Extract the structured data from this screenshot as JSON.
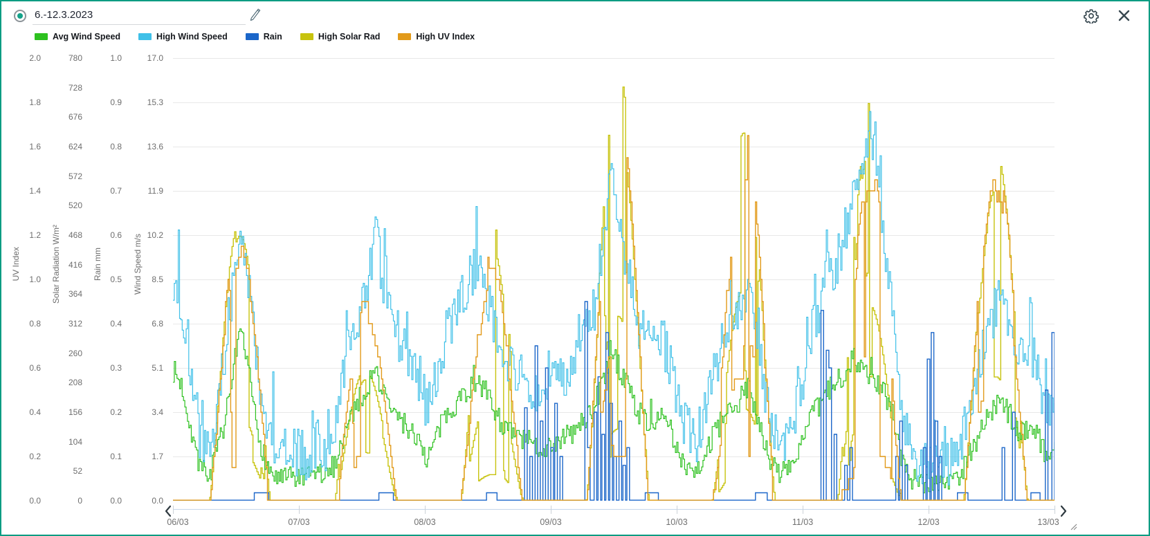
{
  "header": {
    "date_range": "6.-12.3.2023"
  },
  "icons": {
    "edit": "pencil-icon",
    "settings": "gear-icon",
    "close": "close-icon",
    "prev": "chevron-left-icon",
    "next": "chevron-right-icon"
  },
  "colors": {
    "border": "#0b9c82",
    "radio_fill": "#14a38a",
    "grid": "#e8e8e8",
    "tick_text": "#6e6e6e",
    "icon": "#37474f"
  },
  "chart_data": {
    "type": "line",
    "subtype": "step",
    "title": "",
    "grid": "horizontal",
    "legend_position": "top",
    "step_minutes": 15,
    "hours_total": 168,
    "seed": 7,
    "x_labels": [
      "06/03",
      "07/03",
      "08/03",
      "09/03",
      "10/03",
      "11/03",
      "12/03",
      "13/03"
    ],
    "axes": [
      {
        "id": "uv",
        "title": "UV Index",
        "min": 0,
        "max": 2.0,
        "ticks": [
          "2.0",
          "1.8",
          "1.6",
          "1.4",
          "1.2",
          "1.0",
          "0.8",
          "0.6",
          "0.4",
          "0.2",
          "0.0"
        ]
      },
      {
        "id": "solar",
        "title": "Solar Radiation W/m²",
        "min": 0,
        "max": 780,
        "ticks": [
          "780",
          "728",
          "676",
          "624",
          "572",
          "520",
          "468",
          "416",
          "364",
          "312",
          "260",
          "208",
          "156",
          "104",
          "52",
          "0"
        ]
      },
      {
        "id": "rain",
        "title": "Rain mm",
        "min": 0,
        "max": 1.0,
        "ticks": [
          "1.0",
          "0.9",
          "0.8",
          "0.7",
          "0.6",
          "0.5",
          "0.4",
          "0.3",
          "0.2",
          "0.1",
          "0.0"
        ]
      },
      {
        "id": "wind",
        "title": "Wind Speed m/s",
        "min": 0,
        "max": 17.0,
        "ticks": [
          "17.0",
          "15.3",
          "13.6",
          "11.9",
          "10.2",
          "8.5",
          "6.8",
          "5.1",
          "3.4",
          "1.7",
          "0.0"
        ]
      }
    ],
    "series": [
      {
        "name": "Avg Wind Speed",
        "color": "#2dc11f",
        "axis": "wind",
        "kind": "keypoints",
        "noise": 0.45,
        "spike_p": 0.03,
        "spike_amp": 0.8,
        "vmax": 6.9,
        "vmin": 0.1,
        "keypoints": [
          [
            0,
            5.0
          ],
          [
            1.6,
            4.4
          ],
          [
            2.9,
            3.2
          ],
          [
            4.9,
            1.3
          ],
          [
            6.9,
            1.0
          ],
          [
            8.8,
            2.2
          ],
          [
            10.8,
            4.0
          ],
          [
            12.8,
            6.4
          ],
          [
            14.1,
            5.2
          ],
          [
            16.1,
            2.6
          ],
          [
            18.1,
            1.2
          ],
          [
            20,
            0.8
          ],
          [
            22.7,
            0.9
          ],
          [
            25.3,
            0.8
          ],
          [
            27.3,
            1.1
          ],
          [
            29.3,
            0.9
          ],
          [
            30.6,
            1.4
          ],
          [
            32.6,
            2.6
          ],
          [
            34.5,
            3.6
          ],
          [
            36.5,
            4.2
          ],
          [
            38.5,
            5.0
          ],
          [
            40.5,
            3.9
          ],
          [
            42.5,
            3.2
          ],
          [
            44.4,
            2.9
          ],
          [
            46.4,
            2.4
          ],
          [
            48.4,
            1.6
          ],
          [
            50.4,
            2.6
          ],
          [
            52.3,
            3.4
          ],
          [
            54.3,
            3.9
          ],
          [
            56.3,
            4.3
          ],
          [
            58.3,
            4.6
          ],
          [
            60.2,
            3.9
          ],
          [
            62.2,
            3.1
          ],
          [
            64.2,
            2.6
          ],
          [
            66.2,
            2.4
          ],
          [
            68.2,
            2.2
          ],
          [
            70.1,
            2.0
          ],
          [
            72.1,
            2.2
          ],
          [
            74.1,
            2.4
          ],
          [
            76.1,
            2.6
          ],
          [
            78,
            3.0
          ],
          [
            80,
            3.6
          ],
          [
            82,
            4.6
          ],
          [
            83.3,
            5.8
          ],
          [
            84.7,
            5.2
          ],
          [
            86.6,
            4.4
          ],
          [
            88.6,
            3.4
          ],
          [
            90.6,
            3.0
          ],
          [
            92.6,
            3.3
          ],
          [
            94.6,
            2.6
          ],
          [
            95.9,
            1.9
          ],
          [
            97.9,
            1.4
          ],
          [
            99.8,
            1.2
          ],
          [
            101.8,
            2.0
          ],
          [
            104.4,
            3.0
          ],
          [
            107.1,
            3.6
          ],
          [
            109.7,
            4.4
          ],
          [
            111.7,
            3.0
          ],
          [
            113.7,
            1.4
          ],
          [
            115.6,
            1.1
          ],
          [
            117.6,
            1.3
          ],
          [
            119.6,
            2.2
          ],
          [
            121.6,
            3.2
          ],
          [
            123.5,
            3.8
          ],
          [
            125.5,
            4.4
          ],
          [
            127.5,
            4.8
          ],
          [
            129.5,
            5.6
          ],
          [
            131.4,
            5.0
          ],
          [
            133.4,
            4.6
          ],
          [
            135.4,
            4.2
          ],
          [
            137.4,
            3.0
          ],
          [
            138.7,
            1.8
          ],
          [
            140.7,
            0.9
          ],
          [
            144,
            0.7
          ],
          [
            147.3,
            0.7
          ],
          [
            149.9,
            1.0
          ],
          [
            151.9,
            1.9
          ],
          [
            154.5,
            3.0
          ],
          [
            157.2,
            3.8
          ],
          [
            159.1,
            3.4
          ],
          [
            161.1,
            2.6
          ],
          [
            163.1,
            2.9
          ],
          [
            165.1,
            2.4
          ],
          [
            166.4,
            1.6
          ],
          [
            168,
            2.0
          ]
        ]
      },
      {
        "name": "High Wind Speed",
        "color": "#3fc0e8",
        "axis": "wind",
        "kind": "keypoints",
        "noise": 0.95,
        "spike_p": 0.05,
        "spike_amp": 2.0,
        "vmax": 16.1,
        "vmin": 0.15,
        "keypoints": [
          [
            0,
            8.6
          ],
          [
            1.6,
            7.6
          ],
          [
            2.9,
            5.8
          ],
          [
            4.9,
            2.6
          ],
          [
            6.9,
            2.0
          ],
          [
            8.8,
            4.2
          ],
          [
            10.8,
            7.4
          ],
          [
            12.8,
            10.2
          ],
          [
            14.1,
            8.8
          ],
          [
            16.1,
            5.0
          ],
          [
            18.1,
            2.6
          ],
          [
            20,
            1.8
          ],
          [
            22.7,
            1.9
          ],
          [
            25.3,
            1.7
          ],
          [
            27.3,
            2.2
          ],
          [
            29.3,
            2.0
          ],
          [
            30.6,
            2.8
          ],
          [
            32.6,
            5.2
          ],
          [
            34.5,
            6.8
          ],
          [
            36.5,
            8.0
          ],
          [
            38.5,
            10.2
          ],
          [
            40.5,
            7.6
          ],
          [
            42.5,
            6.4
          ],
          [
            44.4,
            5.6
          ],
          [
            46.4,
            4.8
          ],
          [
            48.4,
            3.4
          ],
          [
            50.4,
            5.2
          ],
          [
            52.3,
            6.6
          ],
          [
            54.3,
            7.6
          ],
          [
            56.3,
            8.4
          ],
          [
            58.3,
            9.2
          ],
          [
            60.2,
            7.6
          ],
          [
            62.2,
            6.2
          ],
          [
            64.2,
            5.2
          ],
          [
            66.2,
            4.8
          ],
          [
            68.2,
            4.4
          ],
          [
            70.1,
            4.0
          ],
          [
            72.1,
            4.4
          ],
          [
            74.1,
            4.8
          ],
          [
            76.1,
            5.2
          ],
          [
            78,
            6.0
          ],
          [
            80,
            7.2
          ],
          [
            82,
            9.6
          ],
          [
            83.3,
            12.6
          ],
          [
            84.7,
            11.0
          ],
          [
            86.6,
            8.8
          ],
          [
            88.6,
            6.8
          ],
          [
            90.6,
            6.0
          ],
          [
            92.6,
            6.6
          ],
          [
            94.6,
            5.2
          ],
          [
            95.9,
            3.8
          ],
          [
            97.9,
            2.8
          ],
          [
            99.8,
            2.4
          ],
          [
            101.8,
            4.0
          ],
          [
            104.4,
            6.0
          ],
          [
            107.1,
            7.2
          ],
          [
            109.7,
            8.4
          ],
          [
            111.7,
            6.0
          ],
          [
            113.7,
            2.8
          ],
          [
            115.6,
            2.2
          ],
          [
            117.6,
            2.6
          ],
          [
            119.6,
            4.4
          ],
          [
            121.6,
            6.4
          ],
          [
            123.5,
            7.6
          ],
          [
            125.5,
            8.8
          ],
          [
            127.5,
            9.6
          ],
          [
            129.5,
            11.6
          ],
          [
            131.4,
            12.8
          ],
          [
            132.8,
            14.2
          ],
          [
            134.4,
            12.4
          ],
          [
            135.4,
            10.4
          ],
          [
            137.4,
            6.4
          ],
          [
            138.7,
            3.6
          ],
          [
            140.7,
            1.8
          ],
          [
            144,
            1.4
          ],
          [
            147.3,
            1.4
          ],
          [
            149.9,
            2.0
          ],
          [
            151.9,
            3.8
          ],
          [
            154.5,
            6.0
          ],
          [
            157.2,
            7.6
          ],
          [
            159.1,
            6.8
          ],
          [
            161.1,
            5.2
          ],
          [
            163.1,
            5.8
          ],
          [
            165.1,
            4.8
          ],
          [
            166.4,
            3.2
          ],
          [
            168,
            4.0
          ]
        ]
      },
      {
        "name": "Rain",
        "color": "#1b66c9",
        "axis": "rain",
        "kind": "events",
        "events": [
          [
            15.4,
            0.018,
            2.6
          ],
          [
            39.2,
            0.018,
            2.6
          ],
          [
            59.8,
            0.018,
            1.6
          ],
          [
            67.1,
            0.21,
            0.25
          ],
          [
            68,
            0.1,
            0.25
          ],
          [
            69.1,
            0.35,
            0.25
          ],
          [
            70,
            0.18,
            0.25
          ],
          [
            70.9,
            0.3,
            0.25
          ],
          [
            71.9,
            0.12,
            0.25
          ],
          [
            72.8,
            0.22,
            0.25
          ],
          [
            73.8,
            0.1,
            0.25
          ],
          [
            78.4,
            0.45,
            0.25
          ],
          [
            79.1,
            0.12,
            0.25
          ],
          [
            80.2,
            0.2,
            0.25
          ],
          [
            81,
            0.28,
            0.25
          ],
          [
            81.8,
            0.15,
            0.25
          ],
          [
            82.5,
            0.38,
            0.25
          ],
          [
            83.3,
            0.22,
            0.25
          ],
          [
            84.1,
            0.1,
            0.25
          ],
          [
            84.9,
            0.18,
            0.25
          ],
          [
            85.7,
            0.08,
            0.25
          ],
          [
            86.6,
            0.12,
            0.25
          ],
          [
            90,
            0.018,
            2.2
          ],
          [
            110.9,
            0.018,
            2.0
          ],
          [
            123.6,
            0.43,
            0.25
          ],
          [
            124.5,
            0.34,
            0.25
          ],
          [
            125,
            0.3,
            0.25
          ],
          [
            125.9,
            0.15,
            0.25
          ],
          [
            127.9,
            0.08,
            0.25
          ],
          [
            129.1,
            0.12,
            0.25
          ],
          [
            137.7,
            0.1,
            0.25
          ],
          [
            138.4,
            0.18,
            0.25
          ],
          [
            139.4,
            0.08,
            0.25
          ],
          [
            143,
            0.12,
            0.25
          ],
          [
            143.7,
            0.32,
            0.25
          ],
          [
            144.5,
            0.38,
            0.25
          ],
          [
            145.3,
            0.18,
            0.25
          ],
          [
            146.1,
            0.1,
            0.25
          ],
          [
            149.5,
            0.018,
            1.8
          ],
          [
            157.9,
            0.12,
            0.25
          ],
          [
            160.1,
            0.2,
            0.25
          ],
          [
            163.5,
            0.018,
            1.5
          ],
          [
            166.2,
            0.25,
            0.25
          ],
          [
            167.5,
            0.38,
            0.3
          ]
        ]
      },
      {
        "name": "High Solar Rad",
        "color": "#c7c30e",
        "axis": "solar",
        "kind": "daily",
        "quantize": 1,
        "days": [
          {
            "rise": 6.9,
            "set": 18.5,
            "peak": 515,
            "cloud": 0.3
          },
          {
            "rise": 6.8,
            "set": 18.6,
            "peak": 580,
            "cloud": 0.32
          },
          {
            "rise": 6.8,
            "set": 18.6,
            "peak": 530,
            "cloud": 0.32
          },
          {
            "rise": 6.7,
            "set": 18.7,
            "peak": 780,
            "cloud": 0.72
          },
          {
            "rise": 6.7,
            "set": 18.7,
            "peak": 660,
            "cloud": 0.45
          },
          {
            "rise": 6.6,
            "set": 18.8,
            "peak": 705,
            "cloud": 0.45
          },
          {
            "rise": 6.6,
            "set": 18.8,
            "peak": 645,
            "cloud": 0.1
          }
        ]
      },
      {
        "name": "High UV Index",
        "color": "#e29a1a",
        "axis": "uv",
        "kind": "daily",
        "quantize": 0.05,
        "days": [
          {
            "rise": 6.9,
            "set": 18.5,
            "peak": 1.3,
            "cloud": 0.3
          },
          {
            "rise": 6.8,
            "set": 18.6,
            "peak": 0.95,
            "cloud": 0.3
          },
          {
            "rise": 6.8,
            "set": 18.6,
            "peak": 1.15,
            "cloud": 0.3
          },
          {
            "rise": 6.7,
            "set": 18.7,
            "peak": 1.8,
            "cloud": 0.7
          },
          {
            "rise": 6.7,
            "set": 18.7,
            "peak": 1.72,
            "cloud": 0.4
          },
          {
            "rise": 6.6,
            "set": 18.8,
            "peak": 1.55,
            "cloud": 0.45
          },
          {
            "rise": 6.6,
            "set": 18.8,
            "peak": 1.62,
            "cloud": 0.06
          }
        ]
      }
    ],
    "draw_order": [
      3,
      0,
      1,
      2,
      4
    ]
  }
}
